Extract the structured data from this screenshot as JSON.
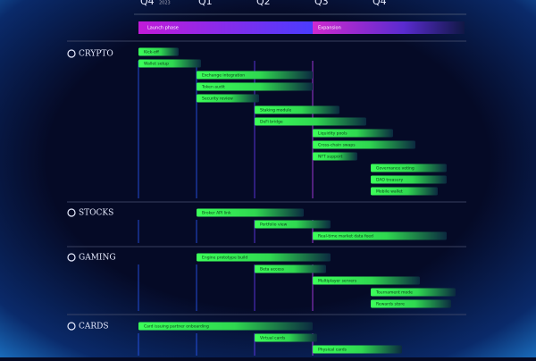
{
  "header": {
    "quarters": [
      "Q4",
      "Q1",
      "Q2",
      "Q3",
      "Q4"
    ],
    "year_note": "2023",
    "phase_labels": [
      "Launch phase",
      "Expansion"
    ]
  },
  "groups": [
    {
      "label": "CRYPTO",
      "tasks": [
        "Kick-off",
        "Wallet setup",
        "Exchange integration",
        "Token audit",
        "Security review",
        "Staking module",
        "DeFi bridge",
        "Liquidity pools",
        "Cross-chain swaps",
        "NFT support",
        "Governance voting",
        "DAO treasury",
        "Mobile wallet"
      ]
    },
    {
      "label": "STOCKS",
      "tasks": [
        "Broker API link",
        "Portfolio view",
        "Real-time market data feed"
      ]
    },
    {
      "label": "GAMING",
      "tasks": [
        "Engine prototype build",
        "Beta access",
        "Multiplayer servers",
        "Tournament mode",
        "Rewards store"
      ]
    },
    {
      "label": "CARDS",
      "tasks": [
        "Card issuing partner onboarding",
        "Virtual cards",
        "Physical cards"
      ]
    }
  ]
}
